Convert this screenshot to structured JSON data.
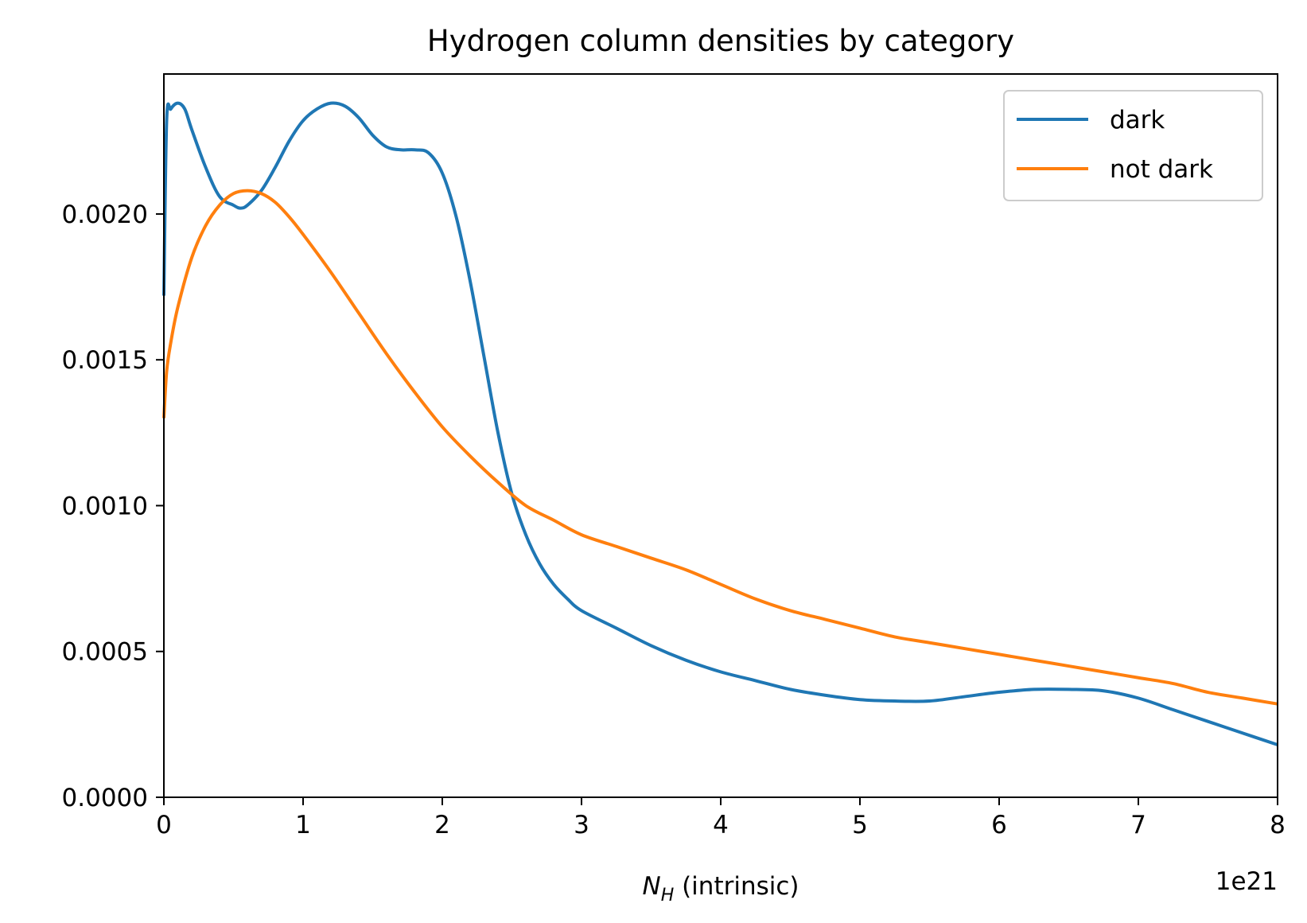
{
  "chart_data": {
    "type": "line",
    "title": "Hydrogen column densities by category",
    "xlabel": "N_H (intrinsic)",
    "xlabel_main": "N",
    "xlabel_sub": "H",
    "xlabel_rest": " (intrinsic)",
    "x_offset_text": "1e21",
    "ylabel": "",
    "xlim": [
      0,
      8e+21
    ],
    "ylim": [
      0,
      0.00248
    ],
    "x_ticks": [
      0,
      1e+21,
      2e+21,
      3e+21,
      4e+21,
      5e+21,
      6e+21,
      7e+21,
      8e+21
    ],
    "x_tick_labels": [
      "0",
      "1",
      "2",
      "3",
      "4",
      "5",
      "6",
      "7",
      "8"
    ],
    "y_ticks": [
      0,
      0.0005,
      0.001,
      0.0015,
      0.002
    ],
    "y_tick_labels": [
      "0.0000",
      "0.0005",
      "0.0010",
      "0.0015",
      "0.0020"
    ],
    "grid": false,
    "legend_position": "top-right",
    "series": [
      {
        "name": "dark",
        "color": "#1f77b4",
        "x": [
          0,
          2e+19,
          5e+19,
          1e+20,
          1.5e+20,
          2e+20,
          3e+20,
          4e+20,
          5e+20,
          5.5e+20,
          6e+20,
          7e+20,
          8e+20,
          9e+20,
          1e+21,
          1.1e+21,
          1.2e+21,
          1.3e+21,
          1.4e+21,
          1.5e+21,
          1.6e+21,
          1.7e+21,
          1.8e+21,
          1.9e+21,
          2e+21,
          2.1e+21,
          2.2e+21,
          2.3e+21,
          2.4e+21,
          2.5e+21,
          2.6e+21,
          2.7e+21,
          2.8e+21,
          2.9e+21,
          3e+21,
          3.25e+21,
          3.5e+21,
          3.75e+21,
          4e+21,
          4.25e+21,
          4.5e+21,
          4.75e+21,
          5e+21,
          5.25e+21,
          5.5e+21,
          5.75e+21,
          6e+21,
          6.25e+21,
          6.5e+21,
          6.75e+21,
          7e+21,
          7.25e+21,
          7.5e+21,
          7.75e+21,
          8e+21
        ],
        "y": [
          0.00172,
          0.00232,
          0.00236,
          0.00238,
          0.00236,
          0.00229,
          0.00216,
          0.00206,
          0.00203,
          0.00202,
          0.00203,
          0.00208,
          0.00216,
          0.00225,
          0.00232,
          0.00236,
          0.00238,
          0.00237,
          0.00233,
          0.00227,
          0.00223,
          0.00222,
          0.00222,
          0.00221,
          0.00214,
          0.00199,
          0.00177,
          0.00151,
          0.00125,
          0.00104,
          0.0009,
          0.0008,
          0.00073,
          0.00068,
          0.00064,
          0.00058,
          0.00052,
          0.00047,
          0.00043,
          0.0004,
          0.00037,
          0.00035,
          0.000335,
          0.00033,
          0.00033,
          0.000345,
          0.00036,
          0.00037,
          0.00037,
          0.000365,
          0.00034,
          0.0003,
          0.00026,
          0.00022,
          0.00018
        ]
      },
      {
        "name": "not dark",
        "color": "#ff7f0e",
        "x": [
          0,
          2e+19,
          5e+19,
          1e+20,
          2e+20,
          3e+20,
          4e+20,
          5e+20,
          6e+20,
          7e+20,
          8e+20,
          9e+20,
          1e+21,
          1.2e+21,
          1.4e+21,
          1.6e+21,
          1.8e+21,
          2e+21,
          2.2e+21,
          2.4e+21,
          2.6e+21,
          2.8e+21,
          3e+21,
          3.25e+21,
          3.5e+21,
          3.75e+21,
          4e+21,
          4.25e+21,
          4.5e+21,
          4.75e+21,
          5e+21,
          5.25e+21,
          5.5e+21,
          5.75e+21,
          6e+21,
          6.25e+21,
          6.5e+21,
          6.75e+21,
          7e+21,
          7.25e+21,
          7.5e+21,
          7.75e+21,
          8e+21
        ],
        "y": [
          0.0013,
          0.00146,
          0.00156,
          0.00168,
          0.00185,
          0.00196,
          0.00203,
          0.00207,
          0.00208,
          0.00207,
          0.00204,
          0.00199,
          0.00193,
          0.0018,
          0.00166,
          0.00152,
          0.00139,
          0.00127,
          0.00117,
          0.00108,
          0.001,
          0.00095,
          0.0009,
          0.00086,
          0.00082,
          0.00078,
          0.00073,
          0.00068,
          0.00064,
          0.00061,
          0.00058,
          0.00055,
          0.00053,
          0.00051,
          0.00049,
          0.00047,
          0.00045,
          0.00043,
          0.00041,
          0.00039,
          0.00036,
          0.00034,
          0.00032
        ]
      }
    ]
  }
}
